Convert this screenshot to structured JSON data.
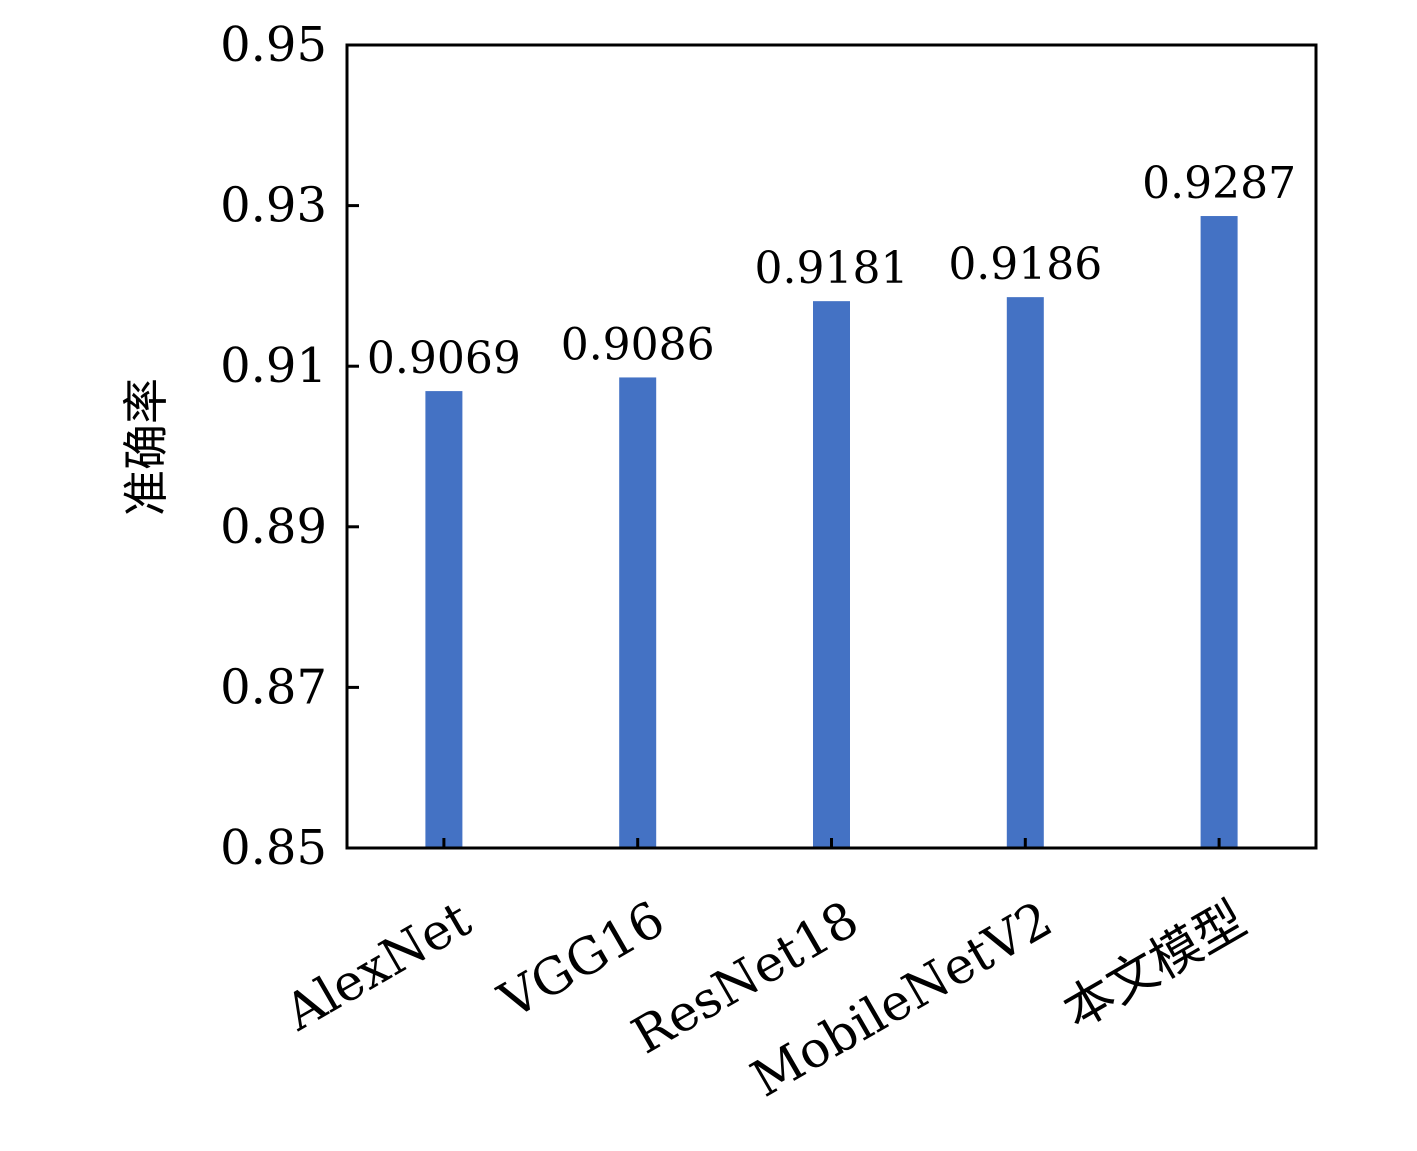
{
  "chart_data": {
    "type": "bar",
    "title": "",
    "xlabel": "",
    "ylabel": "准确率",
    "categories": [
      "AlexNet",
      "VGG16",
      "ResNet18",
      "MobileNetV2",
      "本文模型"
    ],
    "values": [
      0.9069,
      0.9086,
      0.9181,
      0.9186,
      0.9287
    ],
    "data_labels": [
      "0.9069",
      "0.9086",
      "0.9181",
      "0.9186",
      "0.9287"
    ],
    "ylim": [
      0.85,
      0.95
    ],
    "yticks": [
      0.85,
      0.87,
      0.89,
      0.91,
      0.93,
      0.95
    ],
    "ytick_labels": [
      "0.85",
      "0.87",
      "0.89",
      "0.91",
      "0.93",
      "0.95"
    ],
    "grid": false,
    "legend": "none",
    "bar_color": "#4472C4"
  }
}
